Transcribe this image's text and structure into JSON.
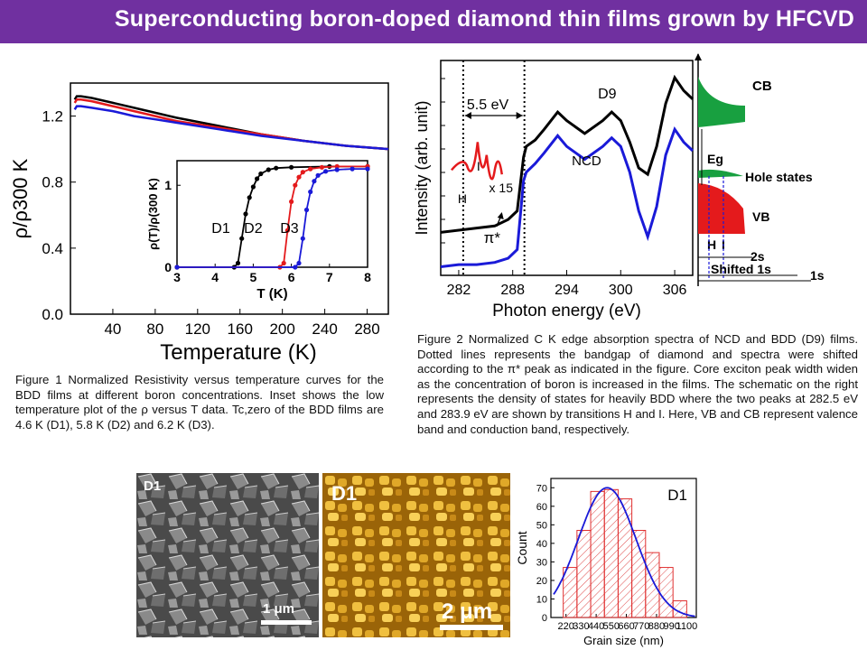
{
  "title": "Superconducting boron-doped diamond thin films grown by HFCVD",
  "colors": {
    "title_bg": "#7030a0",
    "d1": "#000000",
    "d2": "#e41a1c",
    "d3": "#1a1ad8",
    "bar_edge": "#e03030",
    "fit": "#1a1ad8"
  },
  "figure1": {
    "caption": "Figure 1 Normalized Resistivity versus temperature curves for the BDD films at different boron concentrations. Inset shows the low temperature plot of the   ρ versus T data. Tc,zero of the BDD films are 4.6 K (D1), 5.8 K (D2) and 6.2 K (D3).",
    "chart_data": {
      "type": "line",
      "xlabel": "Temperature (K)",
      "ylabel": "ρ/ρ300 K",
      "xlim": [
        0,
        300
      ],
      "ylim": [
        0,
        1.4
      ],
      "xticks": [
        "40",
        "80",
        "120",
        "160",
        "200",
        "240",
        "280"
      ],
      "yticks": [
        "0.0",
        "0.4",
        "0.8",
        "1.2"
      ],
      "series": [
        {
          "name": "D1",
          "color": "#000000",
          "x": [
            4,
            6,
            10,
            20,
            40,
            60,
            80,
            100,
            140,
            180,
            220,
            260,
            300
          ],
          "y": [
            1.3,
            1.32,
            1.32,
            1.31,
            1.28,
            1.25,
            1.22,
            1.19,
            1.14,
            1.09,
            1.05,
            1.02,
            1.0
          ]
        },
        {
          "name": "D2",
          "color": "#e41a1c",
          "x": [
            4,
            6,
            10,
            20,
            40,
            60,
            80,
            100,
            140,
            180,
            220,
            260,
            300
          ],
          "y": [
            1.28,
            1.3,
            1.3,
            1.29,
            1.26,
            1.23,
            1.2,
            1.17,
            1.13,
            1.09,
            1.05,
            1.02,
            1.0
          ]
        },
        {
          "name": "D3",
          "color": "#1a1ad8",
          "x": [
            4,
            6,
            10,
            20,
            40,
            60,
            80,
            100,
            140,
            180,
            220,
            260,
            300
          ],
          "y": [
            1.24,
            1.26,
            1.26,
            1.25,
            1.23,
            1.2,
            1.18,
            1.16,
            1.12,
            1.08,
            1.05,
            1.02,
            1.0
          ]
        }
      ]
    },
    "inset": {
      "type": "line",
      "xlabel": "T (K)",
      "ylabel": "ρ(T)/ρ(300 K)",
      "xlim": [
        3,
        8
      ],
      "ylim": [
        0,
        1.3
      ],
      "xticks": [
        "3",
        "4",
        "5",
        "6",
        "7",
        "8"
      ],
      "yticks": [
        "0",
        "1"
      ],
      "series": [
        {
          "name": "D1",
          "color": "#000000",
          "x": [
            3.0,
            4.5,
            4.6,
            4.7,
            4.8,
            4.9,
            5.0,
            5.1,
            5.2,
            5.4,
            5.6,
            6.0,
            7.0,
            8.0
          ],
          "y": [
            0,
            0,
            0.05,
            0.35,
            0.65,
            0.85,
            0.98,
            1.08,
            1.14,
            1.19,
            1.21,
            1.22,
            1.23,
            1.23
          ]
        },
        {
          "name": "D2",
          "color": "#e41a1c",
          "x": [
            3.0,
            5.7,
            5.8,
            5.9,
            6.0,
            6.1,
            6.2,
            6.3,
            6.5,
            6.8,
            7.2,
            8.0
          ],
          "y": [
            0,
            0,
            0.05,
            0.45,
            0.8,
            1.0,
            1.1,
            1.16,
            1.2,
            1.22,
            1.23,
            1.23
          ]
        },
        {
          "name": "D3",
          "color": "#1a1ad8",
          "x": [
            3.0,
            6.1,
            6.2,
            6.3,
            6.4,
            6.5,
            6.6,
            6.7,
            6.9,
            7.2,
            7.6,
            8.0
          ],
          "y": [
            0,
            0,
            0.05,
            0.35,
            0.7,
            0.92,
            1.05,
            1.12,
            1.17,
            1.19,
            1.2,
            1.2
          ]
        }
      ],
      "labels": [
        "D1",
        "D2",
        "D3"
      ]
    }
  },
  "figure2": {
    "caption": "Figure 2 Normalized C K edge absorption spectra of NCD and BDD (D9) films. Dotted lines represents the bandgap of diamond and spectra were shifted according to the π* peak as indicated in the figure. Core exciton peak width widen as the concentration of boron is increased in the films. The schematic on the right represents the density of states for heavily BDD where the two peaks at 282.5 eV and 283.9 eV are shown by transitions H and I. Here, VB and CB represent valence band and conduction band, respectively.",
    "chart_data": {
      "type": "line",
      "xlabel": "Photon energy (eV)",
      "ylabel": "Intensity (arb. unit)",
      "xlim": [
        280,
        308
      ],
      "xticks": [
        "282",
        "288",
        "294",
        "300",
        "306"
      ],
      "series": [
        {
          "name": "D9",
          "color": "#000000",
          "x": [
            280,
            282,
            284,
            286,
            287.5,
            288.5,
            289.2,
            289.5,
            290.5,
            291.5,
            293,
            294,
            296,
            298,
            299,
            300,
            301,
            302,
            303,
            304,
            305,
            306,
            307,
            308
          ],
          "y": [
            0.2,
            0.21,
            0.22,
            0.23,
            0.26,
            0.3,
            0.55,
            0.6,
            0.63,
            0.68,
            0.76,
            0.72,
            0.66,
            0.72,
            0.76,
            0.72,
            0.62,
            0.5,
            0.47,
            0.6,
            0.8,
            0.92,
            0.86,
            0.82
          ]
        },
        {
          "name": "NCD",
          "color": "#1a1ad8",
          "x": [
            280,
            282,
            284,
            286,
            287.5,
            288.5,
            289.2,
            289.5,
            290.5,
            291.5,
            293,
            294,
            296,
            298,
            299,
            300,
            301,
            302,
            303,
            304,
            305,
            306,
            307,
            308
          ],
          "y": [
            0.04,
            0.05,
            0.05,
            0.06,
            0.08,
            0.12,
            0.44,
            0.48,
            0.52,
            0.57,
            0.65,
            0.6,
            0.54,
            0.6,
            0.64,
            0.6,
            0.48,
            0.3,
            0.18,
            0.32,
            0.56,
            0.68,
            0.62,
            0.58
          ]
        }
      ],
      "annotations": [
        "5.5 eV",
        "D9",
        "NCD",
        "H",
        "I",
        "x 15",
        "π*"
      ]
    },
    "schematic": {
      "labels": {
        "cb": "CB",
        "eg": "Eg",
        "hole_states": "Hole states",
        "vb": "VB",
        "h": "H",
        "i": "I",
        "s2": "2s",
        "shifted": "Shifted 1s",
        "s1": "1s"
      }
    }
  },
  "images": {
    "sem_label": "D1",
    "sem_scale": "1 μm",
    "afm_label": "D1",
    "afm_scale": "2 μm"
  },
  "histogram": {
    "chart_data": {
      "type": "bar",
      "xlabel": "Grain size (nm)",
      "ylabel": "Count",
      "label": "D1",
      "bin_centers": [
        200,
        300,
        400,
        500,
        600,
        700,
        800,
        900,
        1000
      ],
      "values": [
        27,
        47,
        68,
        69,
        64,
        47,
        35,
        27,
        9
      ],
      "xticks": [
        "220",
        "440",
        "660",
        "880",
        "1100"
      ],
      "xticks_fine": [
        "220",
        "440",
        "660",
        "880",
        "1100"
      ],
      "yticks": [
        "0",
        "10",
        "20",
        "30",
        "40",
        "50",
        "60",
        "70"
      ],
      "ylim": [
        0,
        75
      ]
    }
  }
}
